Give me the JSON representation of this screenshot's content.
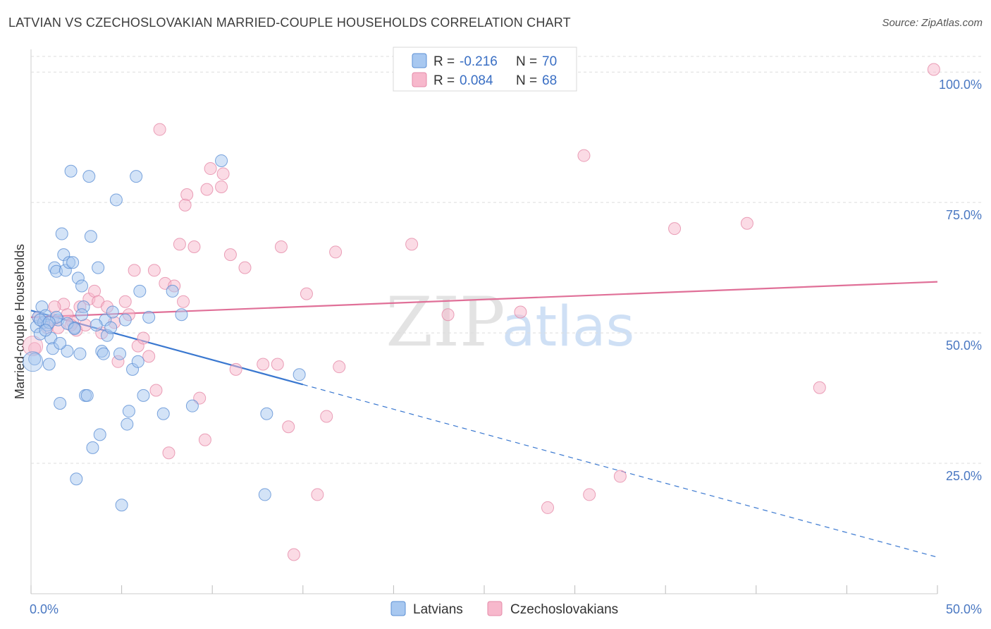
{
  "header": {
    "title": "LATVIAN VS CZECHOSLOVAKIAN MARRIED-COUPLE HOUSEHOLDS CORRELATION CHART",
    "source": "Source: ZipAtlas.com"
  },
  "watermark": {
    "zip": "ZIP",
    "atlas": "atlas"
  },
  "colors": {
    "latvians_fill": "#a8c8f0",
    "latvians_stroke": "#5b8fd4",
    "latvians_line": "#3a78d0",
    "czech_fill": "#f7b8cc",
    "czech_stroke": "#e58aa8",
    "czech_line": "#e07098",
    "tick_color": "#4a78c2"
  },
  "legend_top": {
    "rows": [
      {
        "r_label": "R =",
        "r_value": "-0.216",
        "n_label": "N =",
        "n_value": "70"
      },
      {
        "r_label": "R =",
        "r_value": "0.084",
        "n_label": "N =",
        "n_value": "68"
      }
    ]
  },
  "chart_data": {
    "type": "scatter",
    "title": "LATVIAN VS CZECHOSLOVAKIAN MARRIED-COUPLE HOUSEHOLDS CORRELATION CHART",
    "xlabel": "",
    "ylabel": "Married-couple Households",
    "xlim": [
      0,
      50
    ],
    "ylim": [
      0,
      103
    ],
    "x_tick_labels": [
      "0.0%",
      "50.0%"
    ],
    "y_ticks": [
      25,
      50,
      75,
      100
    ],
    "y_tick_labels": [
      "25.0%",
      "50.0%",
      "75.0%",
      "100.0%"
    ],
    "grid": "horizontal-dashed",
    "legend_position": "top-center",
    "series": [
      {
        "name": "Latvians",
        "color": "#a8c8f0",
        "trend": {
          "x": [
            0,
            15
          ],
          "y": [
            54.3,
            40.1
          ],
          "dashed_extension_to": [
            50,
            7.0
          ]
        },
        "points": [
          [
            0.2,
            45.0
          ],
          [
            0.3,
            51.2
          ],
          [
            0.4,
            53.0
          ],
          [
            0.5,
            49.8
          ],
          [
            0.6,
            55.0
          ],
          [
            0.7,
            52.0
          ],
          [
            0.8,
            53.3
          ],
          [
            0.9,
            51.5
          ],
          [
            1.0,
            44.0
          ],
          [
            1.1,
            49.0
          ],
          [
            1.2,
            47.0
          ],
          [
            1.3,
            62.5
          ],
          [
            1.4,
            61.8
          ],
          [
            1.5,
            52.5
          ],
          [
            1.6,
            36.5
          ],
          [
            1.7,
            69.0
          ],
          [
            1.8,
            65.0
          ],
          [
            1.9,
            62.0
          ],
          [
            2.0,
            46.5
          ],
          [
            2.1,
            63.5
          ],
          [
            2.2,
            81.0
          ],
          [
            2.3,
            63.5
          ],
          [
            2.4,
            51.0
          ],
          [
            2.5,
            22.0
          ],
          [
            2.6,
            60.5
          ],
          [
            2.7,
            46.0
          ],
          [
            2.8,
            59.0
          ],
          [
            2.9,
            55.0
          ],
          [
            3.0,
            38.0
          ],
          [
            3.1,
            38.0
          ],
          [
            3.2,
            80.0
          ],
          [
            3.3,
            68.5
          ],
          [
            3.4,
            28.0
          ],
          [
            3.7,
            62.5
          ],
          [
            3.8,
            30.5
          ],
          [
            3.9,
            46.5
          ],
          [
            4.0,
            46.0
          ],
          [
            4.1,
            52.5
          ],
          [
            4.2,
            49.5
          ],
          [
            4.4,
            51.0
          ],
          [
            4.7,
            75.5
          ],
          [
            4.9,
            46.0
          ],
          [
            5.0,
            17.0
          ],
          [
            5.2,
            52.5
          ],
          [
            5.3,
            32.5
          ],
          [
            5.4,
            35.0
          ],
          [
            5.6,
            43.0
          ],
          [
            5.8,
            80.0
          ],
          [
            5.9,
            44.5
          ],
          [
            6.0,
            58.0
          ],
          [
            6.2,
            38.0
          ],
          [
            6.5,
            53.0
          ],
          [
            7.3,
            34.5
          ],
          [
            7.8,
            58.0
          ],
          [
            8.3,
            53.5
          ],
          [
            8.9,
            36.0
          ],
          [
            10.5,
            83.0
          ],
          [
            12.9,
            19.0
          ],
          [
            13.0,
            34.5
          ],
          [
            14.8,
            42.0
          ],
          [
            0.5,
            52.5
          ],
          [
            1.4,
            53.0
          ],
          [
            2.0,
            51.8
          ],
          [
            2.8,
            53.5
          ],
          [
            3.6,
            51.5
          ],
          [
            4.5,
            54.0
          ],
          [
            1.0,
            52.0
          ],
          [
            0.8,
            50.5
          ],
          [
            1.6,
            48.0
          ],
          [
            2.4,
            50.8
          ]
        ]
      },
      {
        "name": "Czechoslovakians",
        "color": "#f7b8cc",
        "trend": {
          "x": [
            0,
            50
          ],
          "y": [
            53.0,
            59.8
          ]
        },
        "points": [
          [
            0.2,
            47.0
          ],
          [
            0.4,
            53.0
          ],
          [
            0.7,
            52.0
          ],
          [
            0.9,
            51.0
          ],
          [
            1.2,
            52.5
          ],
          [
            1.5,
            51.0
          ],
          [
            1.8,
            55.5
          ],
          [
            2.0,
            53.5
          ],
          [
            2.3,
            52.0
          ],
          [
            2.5,
            50.5
          ],
          [
            2.7,
            55.0
          ],
          [
            3.0,
            51.5
          ],
          [
            3.2,
            56.5
          ],
          [
            3.5,
            58.0
          ],
          [
            3.7,
            56.0
          ],
          [
            3.9,
            50.0
          ],
          [
            4.2,
            55.0
          ],
          [
            4.6,
            52.0
          ],
          [
            4.8,
            44.5
          ],
          [
            5.2,
            56.0
          ],
          [
            5.4,
            53.5
          ],
          [
            5.7,
            62.0
          ],
          [
            5.9,
            47.5
          ],
          [
            6.2,
            49.0
          ],
          [
            6.5,
            45.5
          ],
          [
            6.8,
            62.0
          ],
          [
            6.9,
            39.0
          ],
          [
            7.1,
            89.0
          ],
          [
            7.4,
            59.5
          ],
          [
            7.6,
            27.0
          ],
          [
            7.9,
            59.0
          ],
          [
            8.2,
            67.0
          ],
          [
            8.4,
            56.0
          ],
          [
            8.6,
            76.5
          ],
          [
            8.5,
            74.5
          ],
          [
            9.0,
            66.5
          ],
          [
            9.3,
            37.5
          ],
          [
            9.6,
            29.5
          ],
          [
            9.7,
            77.5
          ],
          [
            9.9,
            81.5
          ],
          [
            10.5,
            78.0
          ],
          [
            10.6,
            80.5
          ],
          [
            11.0,
            65.0
          ],
          [
            11.3,
            43.0
          ],
          [
            11.8,
            62.5
          ],
          [
            12.8,
            44.0
          ],
          [
            13.6,
            44.0
          ],
          [
            13.8,
            66.5
          ],
          [
            14.2,
            32.0
          ],
          [
            14.5,
            7.5
          ],
          [
            15.2,
            57.5
          ],
          [
            15.8,
            19.0
          ],
          [
            16.3,
            34.0
          ],
          [
            16.8,
            65.5
          ],
          [
            17.0,
            43.5
          ],
          [
            21.0,
            67.0
          ],
          [
            23.0,
            53.5
          ],
          [
            27.0,
            54.0
          ],
          [
            28.5,
            16.5
          ],
          [
            30.5,
            84.0
          ],
          [
            30.8,
            19.0
          ],
          [
            32.5,
            22.5
          ],
          [
            35.5,
            70.0
          ],
          [
            39.5,
            71.0
          ],
          [
            43.5,
            39.5
          ],
          [
            49.8,
            100.5
          ],
          [
            1.3,
            55.0
          ],
          [
            2.2,
            51.5
          ]
        ]
      }
    ]
  },
  "legend_bottom": [
    "Latvians",
    "Czechoslovakians"
  ]
}
